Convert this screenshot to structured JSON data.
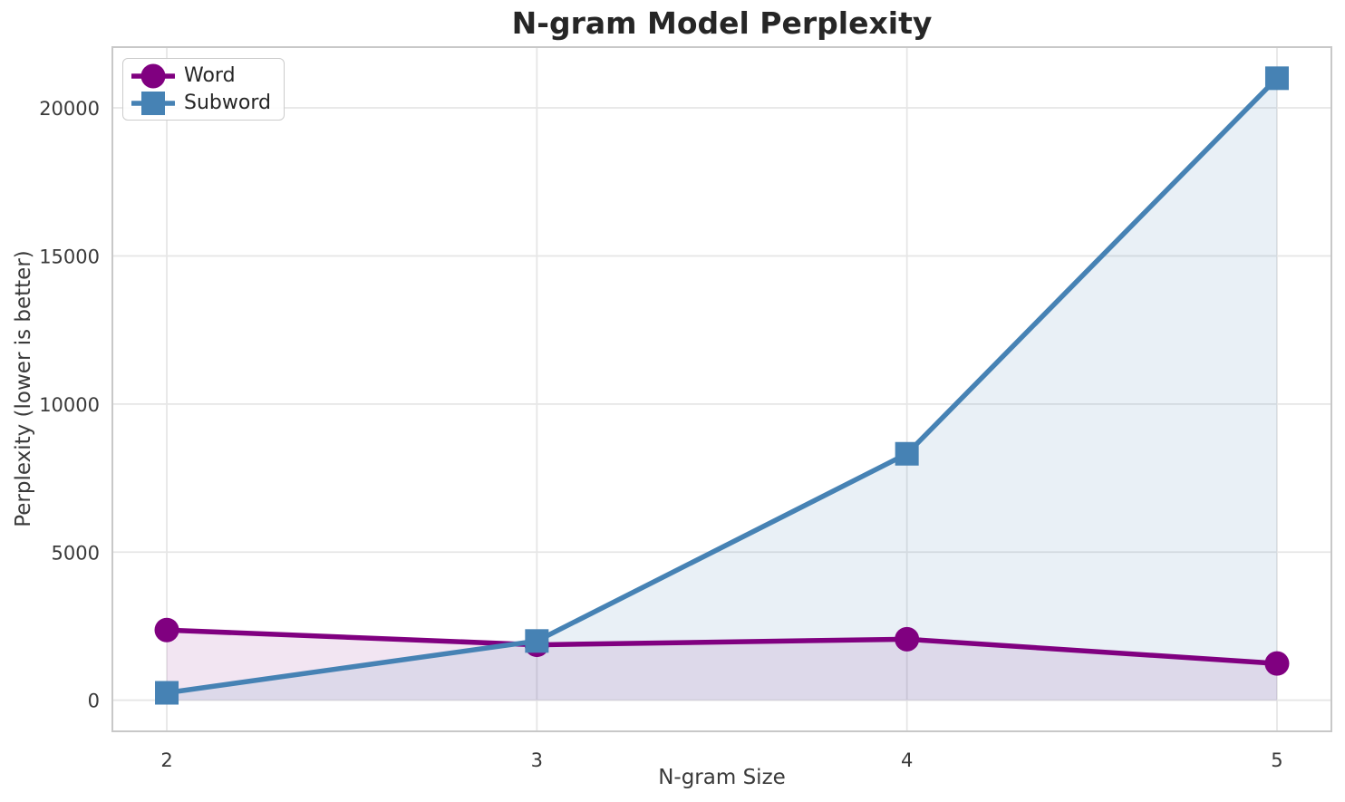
{
  "title": "N-gram Model Perplexity",
  "axes": {
    "xlabel": "N-gram Size",
    "ylabel": "Perplexity (lower is better)"
  },
  "legend": {
    "position": "upper left",
    "items": [
      {
        "label": "Word",
        "marker": "circle",
        "color": "#800080"
      },
      {
        "label": "Subword",
        "marker": "square",
        "color": "#4682b4"
      }
    ]
  },
  "colors": {
    "word_series": "#800080",
    "subword_series": "#4682b4",
    "grid": "#e6e6e6",
    "spine": "#c8c8c8",
    "tick_text": "#3a3a3a",
    "title_text": "#262626",
    "plot_background": "#ffffff"
  },
  "chart_data": {
    "type": "line",
    "title": "N-gram Model Perplexity",
    "xlabel": "N-gram Size",
    "ylabel": "Perplexity (lower is better)",
    "x": [
      2,
      3,
      4,
      5
    ],
    "x_tick_labels": [
      "2",
      "3",
      "4",
      "5"
    ],
    "y_tick_values": [
      0,
      5000,
      10000,
      15000,
      20000
    ],
    "y_tick_labels": [
      "0",
      "5000",
      "10000",
      "15000",
      "20000"
    ],
    "xlim": [
      1.853,
      5.147
    ],
    "ylim": [
      -1050,
      22050
    ],
    "grid": true,
    "legend_position": "upper left",
    "fill_to_zero": true,
    "series": [
      {
        "name": "Word",
        "marker": "circle",
        "color": "#800080",
        "fill_opacity": 0.1,
        "values": [
          2370,
          1870,
          2060,
          1240
        ]
      },
      {
        "name": "Subword",
        "marker": "square",
        "color": "#4682b4",
        "fill_opacity": 0.12,
        "values": [
          250,
          2000,
          8320,
          21000
        ]
      }
    ]
  }
}
